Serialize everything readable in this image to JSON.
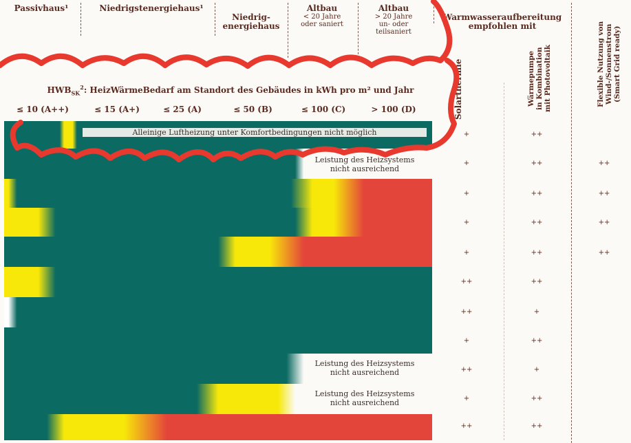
{
  "columns": [
    {
      "title": "Passivhaus¹",
      "sub": ""
    },
    {
      "title": "Niedrigstenergiehaus¹",
      "sub": ""
    },
    {
      "title": "Niedrig-\nenergiehaus",
      "sub": ""
    },
    {
      "title": "Altbau",
      "sub": "< 20 Jahre\noder saniert"
    },
    {
      "title": "Altbau",
      "sub": "> 20 Jahre\nun- oder\nteilsaniert"
    }
  ],
  "ww_header": "Warmwasseraufbereitung\nempfohlen mit",
  "ww_col1": "Solarthermie",
  "ww_col2": "Wärmepumpe\nin Kombination\nmit Photovoltaik",
  "flex_col": "Flexible Nutzung von\nWind-/Sonnenstrom\n(Smart Grid ready)",
  "hwb_title": "HWB",
  "hwb_sub": "SK",
  "hwb_sup": "2",
  "hwb_rest": ": HeizWärmeBedarf am Standort des Gebäudes in kWh pro m² und Jahr",
  "classes": [
    "≤ 10 (A++)",
    "≤ 15 (A+)",
    "≤ 25 (A)",
    "≤ 50 (B)",
    "≤ 100 (C)",
    "> 100 (D)"
  ],
  "notes": [
    "Alleinige Luftheizung unter Komfortbedingungen nicht möglich",
    "Leistung des Heizsystems\nnicht ausreichend",
    "Leistung des Heizsystems\nnicht ausreichend",
    "Leistung des Heizsystems\nnicht ausreichend"
  ],
  "symbols": [
    [
      "+",
      "++",
      ""
    ],
    [
      "+",
      "++",
      "++"
    ],
    [
      "+",
      "++",
      "++"
    ],
    [
      "+",
      "++",
      "++"
    ],
    [
      "+",
      "++",
      "++"
    ],
    [
      "++",
      "++",
      ""
    ],
    [
      "++",
      "+",
      ""
    ],
    [
      "+",
      "++",
      ""
    ],
    [
      "++",
      "+",
      ""
    ],
    [
      "+",
      "++",
      ""
    ],
    [
      "++",
      "++",
      ""
    ]
  ],
  "colors": {
    "teal": "#0b6a62",
    "yellow": "#f7e80a",
    "red": "#e3453a",
    "white": "#ffffff",
    "ink": "#5a2a20",
    "marker": "#e8392f"
  }
}
